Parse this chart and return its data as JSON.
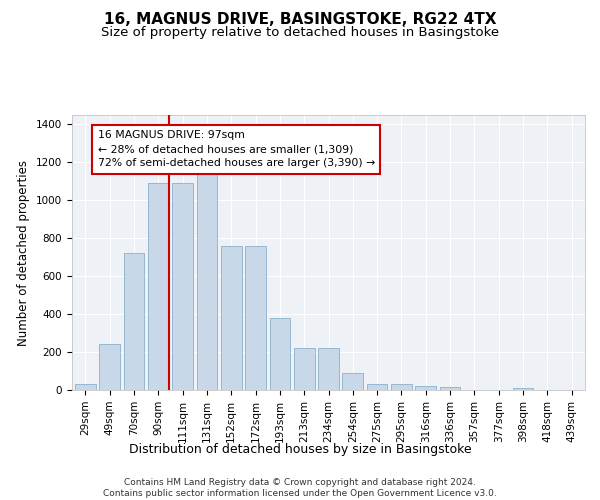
{
  "title1": "16, MAGNUS DRIVE, BASINGSTOKE, RG22 4TX",
  "title2": "Size of property relative to detached houses in Basingstoke",
  "xlabel": "Distribution of detached houses by size in Basingstoke",
  "ylabel": "Number of detached properties",
  "categories": [
    "29sqm",
    "49sqm",
    "70sqm",
    "90sqm",
    "111sqm",
    "131sqm",
    "152sqm",
    "172sqm",
    "193sqm",
    "213sqm",
    "234sqm",
    "254sqm",
    "275sqm",
    "295sqm",
    "316sqm",
    "336sqm",
    "357sqm",
    "377sqm",
    "398sqm",
    "418sqm",
    "439sqm"
  ],
  "values": [
    30,
    240,
    720,
    1090,
    1090,
    1140,
    760,
    760,
    380,
    220,
    220,
    90,
    30,
    30,
    20,
    15,
    0,
    0,
    10,
    0,
    0
  ],
  "bar_color": "#c8d8e8",
  "bar_edge_color": "#8ab0cc",
  "vline_x_index": 3.45,
  "vline_color": "#cc0000",
  "annotation_text": "16 MAGNUS DRIVE: 97sqm\n← 28% of detached houses are smaller (1,309)\n72% of semi-detached houses are larger (3,390) →",
  "annotation_box_color": "#ffffff",
  "annotation_box_edge": "#cc0000",
  "ylim": [
    0,
    1450
  ],
  "yticks": [
    0,
    200,
    400,
    600,
    800,
    1000,
    1200,
    1400
  ],
  "background_color": "#eef2f7",
  "grid_color": "#ffffff",
  "footer": "Contains HM Land Registry data © Crown copyright and database right 2024.\nContains public sector information licensed under the Open Government Licence v3.0.",
  "title1_fontsize": 11,
  "title2_fontsize": 9.5,
  "xlabel_fontsize": 9,
  "ylabel_fontsize": 8.5,
  "footer_fontsize": 6.5,
  "tick_fontsize": 7.5
}
